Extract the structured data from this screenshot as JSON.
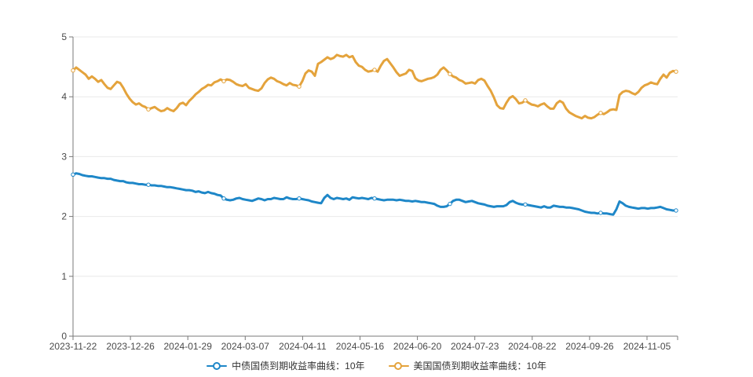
{
  "chart_data": {
    "type": "line",
    "title": "",
    "xlabel": "",
    "ylabel": "",
    "ylim": [
      0,
      5
    ],
    "y_ticks": [
      0,
      1,
      2,
      3,
      4,
      5
    ],
    "grid": true,
    "legend_position": "bottom-center",
    "x_labels": [
      "2023-11-22",
      "2023-12-26",
      "2024-01-29",
      "2024-03-07",
      "2024-04-11",
      "2024-05-16",
      "2024-06-20",
      "2024-07-23",
      "2024-08-22",
      "2024-09-26",
      "2024-11-05"
    ],
    "sampling_note": "values sampled evenly along the date axis from 2023-11-22 to the right edge of the plot",
    "series": [
      {
        "name": "中债国债到期收益率曲线：10年",
        "color": "#1e87c8",
        "values": [
          2.7,
          2.72,
          2.71,
          2.69,
          2.68,
          2.67,
          2.67,
          2.66,
          2.65,
          2.64,
          2.64,
          2.63,
          2.63,
          2.61,
          2.6,
          2.59,
          2.59,
          2.57,
          2.56,
          2.56,
          2.55,
          2.54,
          2.54,
          2.53,
          2.53,
          2.52,
          2.52,
          2.51,
          2.51,
          2.5,
          2.49,
          2.49,
          2.48,
          2.47,
          2.46,
          2.45,
          2.44,
          2.44,
          2.43,
          2.41,
          2.42,
          2.4,
          2.39,
          2.41,
          2.39,
          2.38,
          2.36,
          2.35,
          2.3,
          2.28,
          2.27,
          2.28,
          2.3,
          2.31,
          2.29,
          2.28,
          2.27,
          2.26,
          2.28,
          2.3,
          2.29,
          2.27,
          2.29,
          2.29,
          2.31,
          2.3,
          2.29,
          2.29,
          2.32,
          2.3,
          2.29,
          2.29,
          2.3,
          2.29,
          2.28,
          2.27,
          2.25,
          2.24,
          2.23,
          2.22,
          2.31,
          2.36,
          2.31,
          2.29,
          2.31,
          2.3,
          2.29,
          2.3,
          2.28,
          2.32,
          2.31,
          2.3,
          2.31,
          2.3,
          2.29,
          2.31,
          2.3,
          2.29,
          2.28,
          2.27,
          2.28,
          2.28,
          2.28,
          2.27,
          2.28,
          2.27,
          2.26,
          2.26,
          2.25,
          2.26,
          2.25,
          2.24,
          2.24,
          2.23,
          2.22,
          2.21,
          2.18,
          2.16,
          2.16,
          2.17,
          2.21,
          2.26,
          2.28,
          2.28,
          2.26,
          2.24,
          2.25,
          2.26,
          2.24,
          2.22,
          2.21,
          2.2,
          2.18,
          2.17,
          2.16,
          2.17,
          2.17,
          2.17,
          2.19,
          2.24,
          2.26,
          2.23,
          2.21,
          2.2,
          2.2,
          2.19,
          2.18,
          2.17,
          2.16,
          2.15,
          2.17,
          2.15,
          2.15,
          2.18,
          2.17,
          2.16,
          2.16,
          2.15,
          2.15,
          2.14,
          2.13,
          2.12,
          2.1,
          2.08,
          2.07,
          2.06,
          2.06,
          2.05,
          2.06,
          2.05,
          2.05,
          2.04,
          2.03,
          2.12,
          2.25,
          2.22,
          2.18,
          2.16,
          2.15,
          2.14,
          2.13,
          2.14,
          2.14,
          2.13,
          2.14,
          2.14,
          2.15,
          2.16,
          2.14,
          2.12,
          2.11,
          2.1,
          2.1
        ]
      },
      {
        "name": "美国国债到期收益率曲线：10年",
        "color": "#e4a33c",
        "values": [
          4.44,
          4.49,
          4.45,
          4.41,
          4.37,
          4.3,
          4.34,
          4.3,
          4.25,
          4.28,
          4.21,
          4.15,
          4.13,
          4.19,
          4.25,
          4.23,
          4.15,
          4.05,
          3.97,
          3.91,
          3.87,
          3.89,
          3.85,
          3.83,
          3.79,
          3.81,
          3.83,
          3.79,
          3.76,
          3.77,
          3.81,
          3.78,
          3.76,
          3.81,
          3.88,
          3.9,
          3.86,
          3.93,
          3.98,
          4.04,
          4.08,
          4.13,
          4.16,
          4.2,
          4.19,
          4.24,
          4.26,
          4.29,
          4.26,
          4.29,
          4.28,
          4.25,
          4.21,
          4.19,
          4.18,
          4.21,
          4.15,
          4.13,
          4.11,
          4.1,
          4.14,
          4.23,
          4.29,
          4.32,
          4.3,
          4.26,
          4.24,
          4.21,
          4.19,
          4.23,
          4.2,
          4.19,
          4.17,
          4.26,
          4.39,
          4.44,
          4.42,
          4.35,
          4.55,
          4.58,
          4.62,
          4.66,
          4.63,
          4.65,
          4.7,
          4.68,
          4.67,
          4.7,
          4.66,
          4.68,
          4.58,
          4.52,
          4.5,
          4.45,
          4.42,
          4.43,
          4.45,
          4.42,
          4.52,
          4.6,
          4.63,
          4.56,
          4.49,
          4.41,
          4.35,
          4.37,
          4.39,
          4.45,
          4.43,
          4.31,
          4.27,
          4.26,
          4.28,
          4.3,
          4.31,
          4.33,
          4.37,
          4.45,
          4.49,
          4.44,
          4.38,
          4.34,
          4.32,
          4.28,
          4.26,
          4.22,
          4.23,
          4.24,
          4.22,
          4.28,
          4.3,
          4.27,
          4.18,
          4.1,
          3.99,
          3.86,
          3.81,
          3.8,
          3.9,
          3.98,
          4.01,
          3.96,
          3.89,
          3.9,
          3.94,
          3.9,
          3.87,
          3.86,
          3.84,
          3.87,
          3.89,
          3.84,
          3.8,
          3.8,
          3.89,
          3.93,
          3.9,
          3.8,
          3.74,
          3.71,
          3.68,
          3.66,
          3.64,
          3.68,
          3.65,
          3.64,
          3.66,
          3.7,
          3.73,
          3.71,
          3.74,
          3.78,
          3.79,
          3.78,
          4.03,
          4.08,
          4.1,
          4.09,
          4.06,
          4.04,
          4.08,
          4.15,
          4.19,
          4.21,
          4.24,
          4.22,
          4.21,
          4.3,
          4.37,
          4.32,
          4.4,
          4.43,
          4.42
        ]
      }
    ]
  },
  "colors": {
    "background": "#ffffff",
    "grid_line": "#e9e9e9",
    "axis_line": "#787878",
    "tick_label": "#4a4a4a",
    "legend_text": "#333333"
  }
}
